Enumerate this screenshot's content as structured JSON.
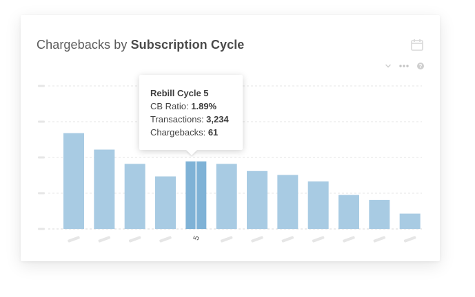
{
  "title": {
    "prefix": "Chargebacks by ",
    "bold": "Subscription Cycle"
  },
  "icons": {
    "calendar": "calendar-icon",
    "chevron": "chevron-down-icon",
    "more": "more-dots-icon",
    "help": "help-icon"
  },
  "colors": {
    "bar": "#a8cbe3",
    "bar_active": "#7fb2d6",
    "grid": "#e4e4e4",
    "axis": "#d8d8d8",
    "tick_placeholder": "#e6e6e6",
    "text": "#444444"
  },
  "tooltip": {
    "heading": "Rebill Cycle 5",
    "cb_ratio_label": "CB Ratio: ",
    "cb_ratio_value": "1.89%",
    "transactions_label": "Transactions: ",
    "transactions_value": "3,234",
    "chargebacks_label": "Chargebacks: ",
    "chargebacks_value": "61"
  },
  "chart_data": {
    "type": "bar",
    "title": "Chargebacks by Subscription Cycle",
    "categories": [
      "",
      "",
      "",
      "",
      "5",
      "",
      "",
      "",
      "",
      "",
      "",
      ""
    ],
    "values": [
      2.68,
      2.22,
      1.82,
      1.47,
      1.89,
      1.82,
      1.62,
      1.51,
      1.33,
      0.95,
      0.81,
      0.43
    ],
    "highlighted_index": 4,
    "ylim": [
      0,
      4
    ],
    "grid": true,
    "ytick_labels_visible": false,
    "xtick_labels_visible": false
  }
}
